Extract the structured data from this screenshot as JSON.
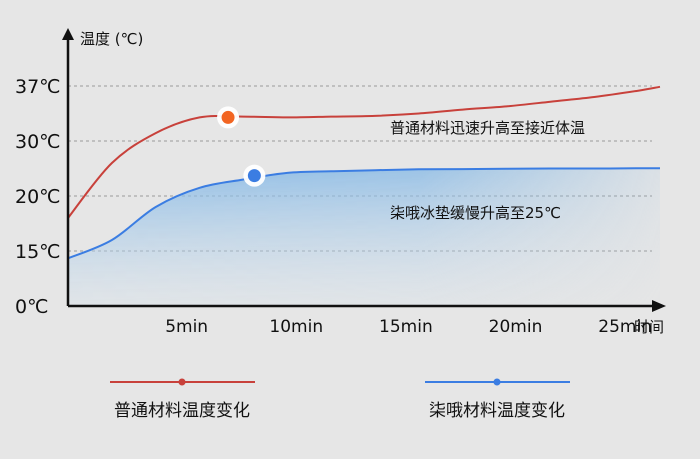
{
  "chart_data": {
    "type": "line",
    "ylabel": "温度 (℃)",
    "xlabel": "时间",
    "categories": [
      "5min",
      "10min",
      "15min",
      "20min",
      "25min"
    ],
    "y_ticks": [
      "0℃",
      "15℃",
      "20℃",
      "30℃",
      "37℃"
    ],
    "grid": "dashed horizontal",
    "series": [
      {
        "name": "普通材料温度变化",
        "color": "#c8413b",
        "annotation": "普通材料迅速升高至接近体温",
        "points": [
          [
            0,
            18
          ],
          [
            2,
            26
          ],
          [
            4,
            31
          ],
          [
            6,
            33
          ],
          [
            8,
            33.1
          ],
          [
            10,
            33
          ],
          [
            12,
            33.1
          ],
          [
            14,
            33.2
          ],
          [
            16,
            33.5
          ],
          [
            18,
            34
          ],
          [
            20,
            34.4
          ],
          [
            22,
            35
          ],
          [
            24,
            35.6
          ],
          [
            26,
            36.4
          ],
          [
            27,
            36.9
          ]
        ]
      },
      {
        "name": "柒哦材料温度变化",
        "color": "#3b7de2",
        "annotation": "柒哦冰垫缓慢升高至25℃",
        "points": [
          [
            0,
            13
          ],
          [
            2,
            16
          ],
          [
            4,
            19
          ],
          [
            6,
            21.5
          ],
          [
            8,
            23
          ],
          [
            10,
            24.2
          ],
          [
            12,
            24.5
          ],
          [
            14,
            24.7
          ],
          [
            16,
            24.85
          ],
          [
            18,
            24.9
          ],
          [
            20,
            24.95
          ],
          [
            22,
            25
          ],
          [
            24,
            25
          ],
          [
            26,
            25.05
          ],
          [
            27,
            25.05
          ]
        ]
      }
    ],
    "markers": [
      {
        "series": 0,
        "x": 7.3,
        "y": 33,
        "color": "#f26522"
      },
      {
        "series": 1,
        "x": 8.5,
        "y": 23.7,
        "color": "#3b7de2"
      }
    ]
  }
}
